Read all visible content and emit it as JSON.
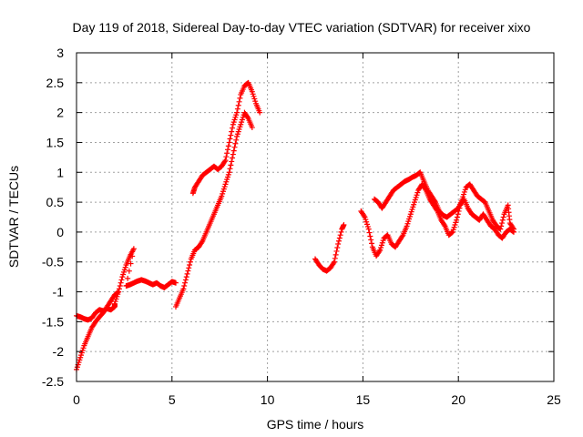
{
  "chart_data": {
    "type": "scatter",
    "title": "Day 119 of 2018, Sidereal Day-to-day VTEC variation (SDTVAR) for receiver xixo",
    "xlabel": "GPS time / hours",
    "ylabel": "SDTVAR / TECUs",
    "xlim": [
      0,
      25
    ],
    "ylim": [
      -2.5,
      3
    ],
    "xticks": [
      0,
      5,
      10,
      15,
      20,
      25
    ],
    "yticks": [
      -2.5,
      -2,
      -1.5,
      -1,
      -0.5,
      0,
      0.5,
      1,
      1.5,
      2,
      2.5,
      3
    ],
    "xtick_labels": [
      "0",
      "5",
      "10",
      "15",
      "20",
      "25"
    ],
    "ytick_labels": [
      "-2.5",
      "-2",
      "-1.5",
      "-1",
      "-0.5",
      "0",
      "0.5",
      "1",
      "1.5",
      "2",
      "2.5",
      "3"
    ],
    "grid": true,
    "marker": "+",
    "color": "#ff0000",
    "series": [
      {
        "points": [
          [
            0.0,
            -1.4
          ],
          [
            0.2,
            -1.42
          ],
          [
            0.4,
            -1.45
          ],
          [
            0.6,
            -1.47
          ],
          [
            0.8,
            -1.44
          ],
          [
            1.0,
            -1.35
          ],
          [
            1.2,
            -1.3
          ],
          [
            1.4,
            -1.32
          ],
          [
            1.6,
            -1.28
          ],
          [
            1.8,
            -1.3
          ],
          [
            2.0,
            -1.25
          ],
          [
            2.0,
            -1.2
          ],
          [
            2.2,
            -1.0
          ],
          [
            2.4,
            -0.75
          ],
          [
            2.6,
            -0.55
          ],
          [
            2.8,
            -0.4
          ],
          [
            3.0,
            -0.28
          ],
          [
            2.6,
            -0.9
          ],
          [
            2.8,
            -0.88
          ],
          [
            3.0,
            -0.85
          ],
          [
            3.2,
            -0.82
          ],
          [
            3.4,
            -0.8
          ],
          [
            3.6,
            -0.82
          ],
          [
            3.8,
            -0.85
          ],
          [
            4.0,
            -0.88
          ],
          [
            4.2,
            -0.85
          ],
          [
            4.4,
            -0.9
          ],
          [
            4.6,
            -0.93
          ],
          [
            4.8,
            -0.88
          ],
          [
            5.0,
            -0.83
          ],
          [
            5.2,
            -0.85
          ]
        ]
      },
      {
        "points": [
          [
            0.0,
            -2.3
          ],
          [
            0.2,
            -2.1
          ],
          [
            0.4,
            -1.9
          ],
          [
            0.6,
            -1.75
          ],
          [
            0.8,
            -1.6
          ],
          [
            1.0,
            -1.5
          ],
          [
            1.2,
            -1.42
          ],
          [
            1.4,
            -1.35
          ],
          [
            1.6,
            -1.25
          ],
          [
            1.8,
            -1.15
          ],
          [
            2.0,
            -1.05
          ],
          [
            2.2,
            -1.0
          ]
        ]
      },
      {
        "points": [
          [
            5.2,
            -1.25
          ],
          [
            5.4,
            -1.1
          ],
          [
            5.6,
            -0.95
          ],
          [
            5.8,
            -0.7
          ],
          [
            6.0,
            -0.45
          ],
          [
            6.2,
            -0.3
          ],
          [
            6.4,
            -0.25
          ],
          [
            6.6,
            -0.15
          ],
          [
            6.8,
            0.0
          ],
          [
            7.0,
            0.15
          ],
          [
            7.2,
            0.3
          ],
          [
            7.4,
            0.45
          ],
          [
            7.6,
            0.6
          ],
          [
            7.8,
            0.8
          ],
          [
            8.0,
            1.0
          ],
          [
            8.2,
            1.3
          ],
          [
            8.4,
            1.6
          ],
          [
            8.6,
            1.8
          ],
          [
            8.8,
            2.0
          ],
          [
            9.0,
            1.9
          ],
          [
            9.2,
            1.75
          ]
        ]
      },
      {
        "points": [
          [
            6.1,
            0.65
          ],
          [
            6.2,
            0.75
          ],
          [
            6.4,
            0.85
          ],
          [
            6.6,
            0.95
          ],
          [
            6.8,
            1.0
          ],
          [
            7.0,
            1.05
          ],
          [
            7.2,
            1.1
          ],
          [
            7.4,
            1.05
          ],
          [
            7.6,
            1.1
          ],
          [
            7.8,
            1.2
          ],
          [
            8.0,
            1.5
          ],
          [
            8.2,
            1.8
          ],
          [
            8.4,
            2.0
          ],
          [
            8.6,
            2.3
          ],
          [
            8.8,
            2.45
          ],
          [
            9.0,
            2.5
          ],
          [
            9.2,
            2.35
          ],
          [
            9.4,
            2.15
          ],
          [
            9.6,
            2.0
          ]
        ]
      },
      {
        "points": [
          [
            12.5,
            -0.45
          ],
          [
            12.7,
            -0.55
          ],
          [
            12.9,
            -0.62
          ],
          [
            13.1,
            -0.65
          ],
          [
            13.3,
            -0.6
          ],
          [
            13.5,
            -0.5
          ],
          [
            13.7,
            -0.2
          ],
          [
            13.9,
            0.05
          ],
          [
            14.0,
            0.12
          ]
        ]
      },
      {
        "points": [
          [
            14.9,
            0.35
          ],
          [
            15.1,
            0.25
          ],
          [
            15.3,
            0.05
          ],
          [
            15.5,
            -0.25
          ],
          [
            15.7,
            -0.4
          ],
          [
            15.9,
            -0.3
          ],
          [
            16.1,
            -0.1
          ],
          [
            16.3,
            -0.05
          ],
          [
            16.5,
            -0.2
          ],
          [
            16.7,
            -0.25
          ],
          [
            16.9,
            -0.15
          ],
          [
            17.1,
            -0.05
          ],
          [
            17.3,
            0.1
          ],
          [
            17.5,
            0.3
          ],
          [
            17.7,
            0.5
          ],
          [
            17.9,
            0.7
          ],
          [
            18.1,
            0.8
          ],
          [
            18.3,
            0.7
          ],
          [
            18.5,
            0.55
          ],
          [
            18.7,
            0.45
          ],
          [
            18.9,
            0.35
          ],
          [
            19.1,
            0.2
          ],
          [
            19.3,
            0.1
          ],
          [
            19.5,
            -0.05
          ],
          [
            19.7,
            0.0
          ],
          [
            19.9,
            0.2
          ],
          [
            20.1,
            0.45
          ],
          [
            20.3,
            0.55
          ],
          [
            20.5,
            0.4
          ],
          [
            20.7,
            0.3
          ],
          [
            20.9,
            0.25
          ],
          [
            21.1,
            0.2
          ],
          [
            21.3,
            0.3
          ],
          [
            21.5,
            0.2
          ],
          [
            21.7,
            0.1
          ],
          [
            21.9,
            0.05
          ],
          [
            22.1,
            -0.05
          ],
          [
            22.3,
            -0.1
          ],
          [
            22.5,
            0.0
          ],
          [
            22.7,
            0.05
          ],
          [
            22.9,
            0.0
          ]
        ]
      },
      {
        "points": [
          [
            15.6,
            0.55
          ],
          [
            15.8,
            0.5
          ],
          [
            16.0,
            0.4
          ],
          [
            16.2,
            0.5
          ],
          [
            16.4,
            0.6
          ],
          [
            16.6,
            0.7
          ],
          [
            16.8,
            0.75
          ],
          [
            17.0,
            0.8
          ],
          [
            17.2,
            0.85
          ],
          [
            17.4,
            0.88
          ],
          [
            17.6,
            0.92
          ],
          [
            17.8,
            0.95
          ],
          [
            18.0,
            1.0
          ],
          [
            18.2,
            0.85
          ],
          [
            18.4,
            0.7
          ],
          [
            18.6,
            0.6
          ],
          [
            18.8,
            0.5
          ],
          [
            19.0,
            0.35
          ],
          [
            19.2,
            0.28
          ],
          [
            19.4,
            0.25
          ],
          [
            19.6,
            0.3
          ],
          [
            19.8,
            0.35
          ],
          [
            20.0,
            0.4
          ],
          [
            20.2,
            0.55
          ],
          [
            20.4,
            0.75
          ],
          [
            20.6,
            0.8
          ],
          [
            20.8,
            0.7
          ],
          [
            21.0,
            0.6
          ],
          [
            21.2,
            0.55
          ],
          [
            21.4,
            0.5
          ],
          [
            21.6,
            0.35
          ],
          [
            21.8,
            0.2
          ],
          [
            22.0,
            0.1
          ],
          [
            22.2,
            0.05
          ],
          [
            22.4,
            0.3
          ],
          [
            22.6,
            0.45
          ],
          [
            22.7,
            0.15
          ],
          [
            22.9,
            0.05
          ]
        ]
      }
    ]
  }
}
